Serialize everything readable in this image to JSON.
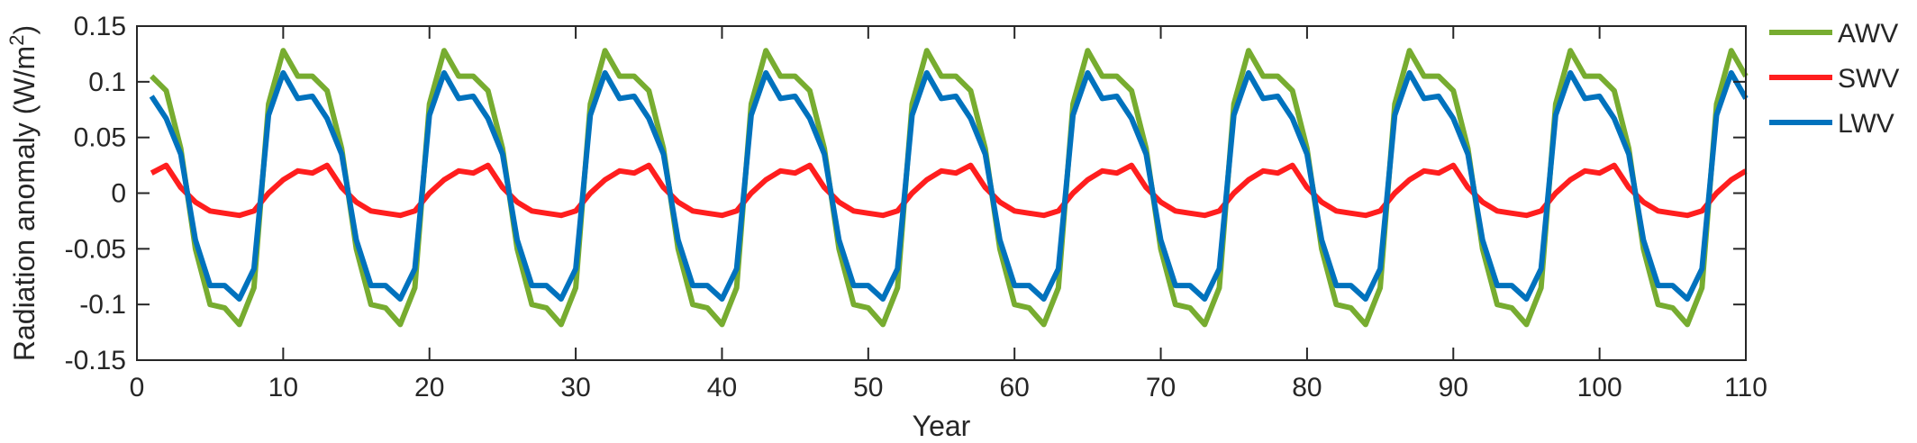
{
  "chart_data": {
    "type": "line",
    "xlabel": "Year",
    "ylabel": "Radiation anomaly (W/m",
    "ylabel_sup": "2",
    "ylabel_close": ")",
    "xlim": [
      0,
      110
    ],
    "ylim": [
      -0.15,
      0.15
    ],
    "xticks": [
      0,
      10,
      20,
      30,
      40,
      50,
      60,
      70,
      80,
      90,
      100,
      110
    ],
    "yticks": [
      -0.15,
      -0.1,
      -0.05,
      0,
      0.05,
      0.1,
      0.15
    ],
    "xtick_labels": [
      "0",
      "10",
      "20",
      "30",
      "40",
      "50",
      "60",
      "70",
      "80",
      "90",
      "100",
      "110"
    ],
    "ytick_labels": [
      "-0.15",
      "-0.1",
      "-0.05",
      "0",
      "0.05",
      "0.1",
      "0.15"
    ],
    "grid": false,
    "legend": "outside-top-right",
    "period": 11,
    "x": [
      1,
      2,
      3,
      4,
      5,
      6,
      7,
      8,
      9,
      10,
      11
    ],
    "series": [
      {
        "name": "AWV",
        "color": "#77AC30",
        "values": [
          0.105,
          0.092,
          0.04,
          -0.05,
          -0.1,
          -0.103,
          -0.118,
          -0.085,
          0.08,
          0.128,
          0.105
        ]
      },
      {
        "name": "SWV",
        "color": "#FF1E1E",
        "values": [
          0.018,
          0.025,
          0.005,
          -0.008,
          -0.016,
          -0.018,
          -0.02,
          -0.016,
          0.0,
          0.012,
          0.02
        ]
      },
      {
        "name": "LWV",
        "color": "#0072BD",
        "values": [
          0.087,
          0.067,
          0.035,
          -0.042,
          -0.083,
          -0.083,
          -0.095,
          -0.068,
          0.07,
          0.108,
          0.085
        ]
      }
    ]
  }
}
